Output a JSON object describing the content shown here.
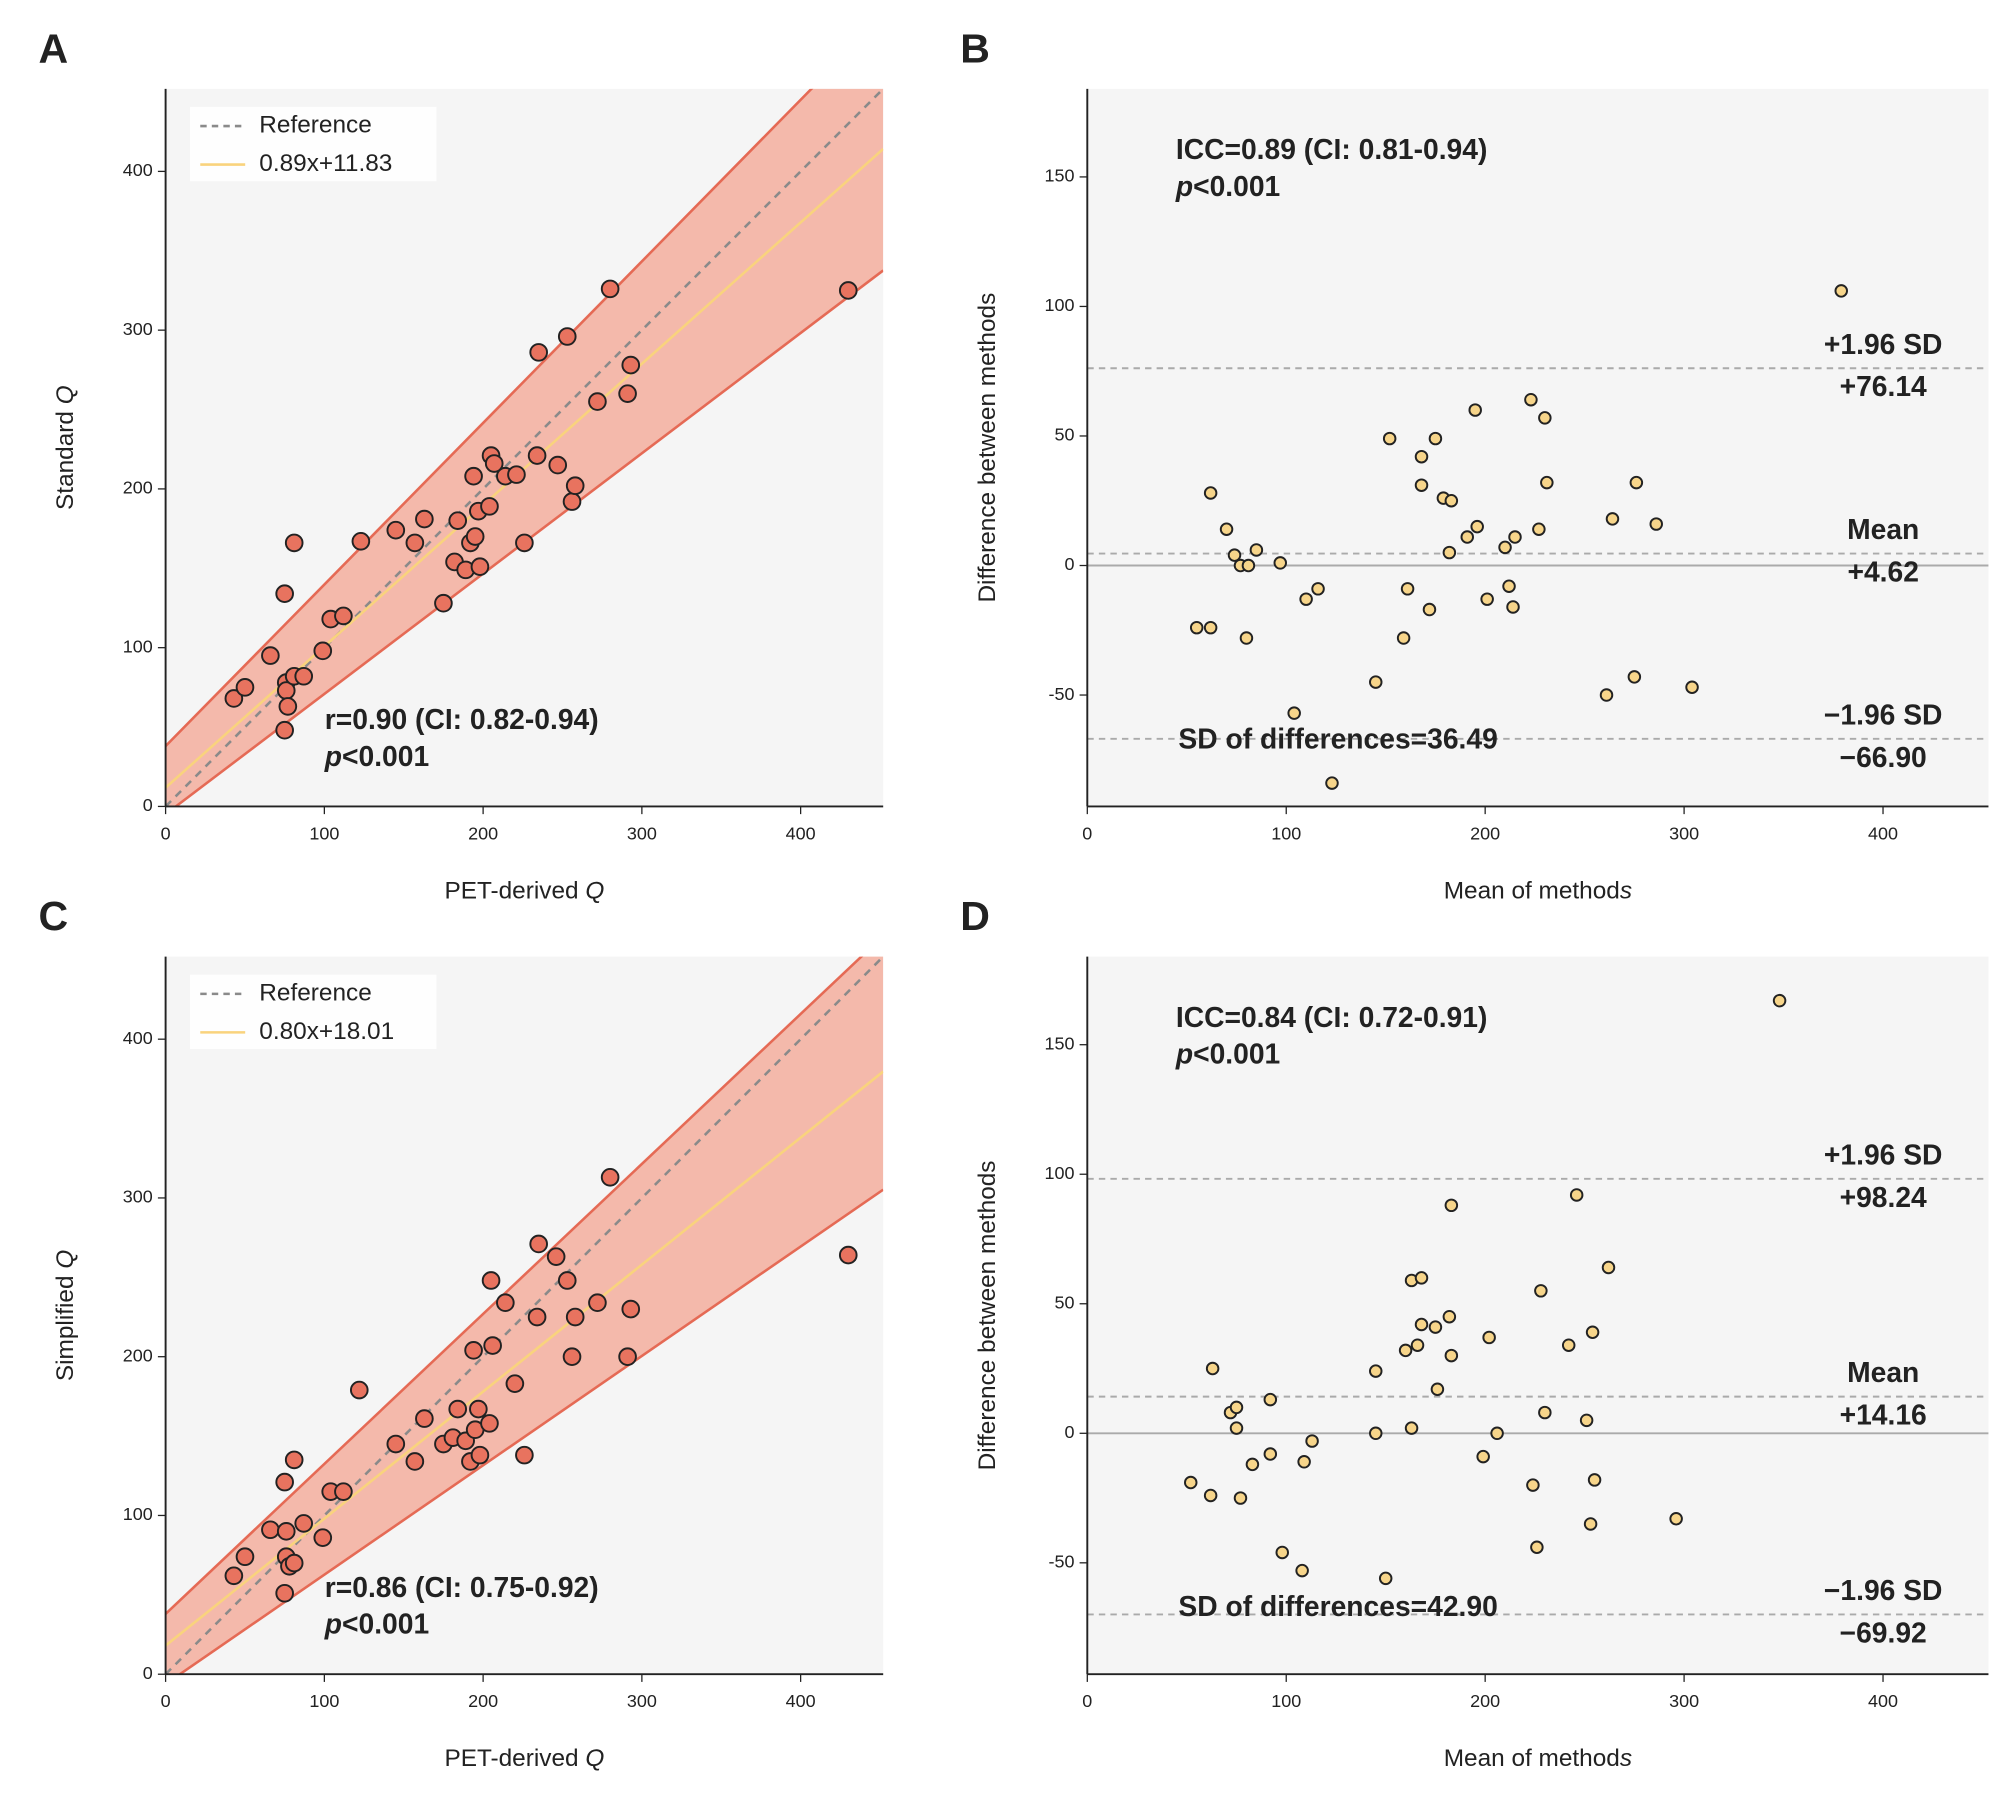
{
  "chart_data": [
    {
      "type": "scatter",
      "panel": "A",
      "xlabel": "PET-derived Q",
      "ylabel": "Standard Q",
      "xlim": [
        0,
        452
      ],
      "ylim": [
        0,
        452
      ],
      "xticks": [
        0,
        100,
        200,
        300,
        400
      ],
      "yticks": [
        0,
        100,
        200,
        300,
        400
      ],
      "legend": "upper left",
      "marker_color": "#e8735f",
      "x": [
        43,
        50,
        66,
        75,
        76,
        76,
        77,
        75,
        81,
        81,
        87,
        99,
        104,
        112,
        123,
        145,
        157,
        163,
        175,
        184,
        182,
        189,
        192,
        194,
        195,
        197,
        198,
        204,
        205,
        207,
        214,
        221,
        226,
        234,
        235,
        247,
        253,
        256,
        258,
        272,
        280,
        291,
        293,
        430
      ],
      "values": [
        68,
        75,
        95,
        134,
        78,
        73,
        63,
        48,
        82,
        166,
        82,
        98,
        118,
        120,
        167,
        174,
        166,
        181,
        128,
        180,
        154,
        149,
        166,
        208,
        170,
        186,
        151,
        189,
        221,
        216,
        208,
        209,
        166,
        221,
        286,
        215,
        296,
        192,
        202,
        255,
        326,
        260,
        278,
        325
      ],
      "band": {
        "x": [
          0,
          452
        ],
        "upper": [
          38,
          498
        ],
        "lower": [
          -4.9,
          337.6
        ],
        "color": "#f4b9ab",
        "edge": "#e56a55"
      },
      "lines": [
        {
          "name": "Reference",
          "color": "#8a8a8a",
          "dash": true,
          "x": [
            0,
            452
          ],
          "values": [
            0,
            452
          ]
        },
        {
          "name": "0.89x+11.83",
          "color": "#f9d37d",
          "dash": false,
          "x": [
            0,
            452
          ],
          "values": [
            11.83,
            414.11
          ]
        }
      ],
      "annotations": [
        "r=0.90 (CI: 0.82-0.94)",
        "p<0.001"
      ]
    },
    {
      "type": "scatter",
      "panel": "B",
      "xlabel": "Mean of methods",
      "ylabel": "Difference between methods",
      "xlim": [
        0,
        453
      ],
      "ylim": [
        -93,
        184
      ],
      "xticks": [
        0,
        100,
        200,
        300,
        400
      ],
      "yticks": [
        -50,
        0,
        50,
        100,
        150
      ],
      "marker_color": "#f7d58a",
      "x": [
        55,
        62,
        62,
        70,
        74,
        77,
        81,
        80,
        85,
        97,
        104,
        110,
        116,
        145,
        152,
        159,
        161,
        168,
        168,
        172,
        175,
        179,
        183,
        182,
        191,
        196,
        195,
        201,
        210,
        212,
        214,
        215,
        223,
        227,
        230,
        231,
        123,
        261,
        264,
        275,
        276,
        286,
        304,
        379
      ],
      "values": [
        -24,
        -24,
        28,
        14,
        4,
        0,
        0,
        -28,
        6,
        1,
        -57,
        -13,
        -9,
        -45,
        49,
        -28,
        -9,
        42,
        31,
        -17,
        49,
        26,
        25,
        5,
        11,
        15,
        60,
        -13,
        7,
        -8,
        -16,
        11,
        64,
        14,
        57,
        32,
        -84,
        -50,
        18,
        -43,
        32,
        16,
        -47,
        106
      ],
      "limits": [
        {
          "name": "+1.96 SD",
          "value": 76.14,
          "label": "+76.14"
        },
        {
          "name": "Mean",
          "value": 4.62,
          "label": "+4.62"
        },
        {
          "name": "−1.96 SD",
          "value": -66.9,
          "label": "−66.90"
        }
      ],
      "annotations": [
        "ICC=0.89 (CI: 0.81-0.94)",
        "p<0.001"
      ],
      "sd_label": "SD of differences=36.49"
    },
    {
      "type": "scatter",
      "panel": "C",
      "xlabel": "PET-derived Q",
      "ylabel": "Simplified Q",
      "xlim": [
        0,
        452
      ],
      "ylim": [
        0,
        452
      ],
      "xticks": [
        0,
        100,
        200,
        300,
        400
      ],
      "yticks": [
        0,
        100,
        200,
        300,
        400
      ],
      "legend": "upper left",
      "marker_color": "#e8735f",
      "x": [
        43,
        50,
        66,
        75,
        76,
        76,
        78,
        75,
        81,
        81,
        87,
        99,
        104,
        112,
        122,
        145,
        157,
        163,
        175,
        181,
        184,
        189,
        192,
        194,
        195,
        197,
        198,
        204,
        205,
        206,
        214,
        220,
        226,
        234,
        235,
        246,
        253,
        256,
        258,
        272,
        280,
        291,
        293,
        430
      ],
      "values": [
        62,
        74,
        91,
        121,
        90,
        74,
        68,
        51,
        70,
        135,
        95,
        86,
        115,
        115,
        179,
        145,
        134,
        161,
        145,
        149,
        167,
        147,
        134,
        204,
        154,
        167,
        138,
        158,
        248,
        207,
        234,
        183,
        138,
        225,
        271,
        263,
        248,
        200,
        225,
        234,
        313,
        200,
        230,
        264
      ],
      "band": {
        "x": [
          0,
          452
        ],
        "upper": [
          38,
          465
        ],
        "lower": [
          -6.2,
          305.2
        ],
        "color": "#f4b9ab",
        "edge": "#e56a55"
      },
      "lines": [
        {
          "name": "Reference",
          "color": "#8a8a8a",
          "dash": true,
          "x": [
            0,
            452
          ],
          "values": [
            0,
            452
          ]
        },
        {
          "name": "0.80x+18.01",
          "color": "#f9d37d",
          "dash": false,
          "x": [
            0,
            452
          ],
          "values": [
            18.01,
            379.61
          ]
        }
      ],
      "annotations": [
        "r=0.86 (CI: 0.75-0.92)",
        "p<0.001"
      ]
    },
    {
      "type": "scatter",
      "panel": "D",
      "xlabel": "Mean of methods",
      "ylabel": "Difference between methods",
      "xlim": [
        0,
        453
      ],
      "ylim": [
        -93,
        184
      ],
      "xticks": [
        0,
        100,
        200,
        300,
        400
      ],
      "yticks": [
        -50,
        0,
        50,
        100,
        150
      ],
      "marker_color": "#f7d58a",
      "x": [
        52,
        62,
        63,
        72,
        75,
        75,
        77,
        83,
        92,
        92,
        98,
        108,
        109,
        113,
        145,
        145,
        150,
        160,
        163,
        163,
        166,
        168,
        168,
        175,
        176,
        182,
        183,
        183,
        199,
        202,
        206,
        224,
        226,
        228,
        230,
        242,
        246,
        251,
        254,
        253,
        255,
        262,
        296,
        348
      ],
      "values": [
        -19,
        -24,
        25,
        8,
        10,
        2,
        -25,
        -12,
        13,
        -8,
        -46,
        -53,
        -11,
        -3,
        24,
        0,
        -56,
        32,
        59,
        2,
        34,
        60,
        42,
        41,
        17,
        45,
        30,
        88,
        -9,
        37,
        0,
        -20,
        -44,
        55,
        8,
        34,
        92,
        5,
        39,
        -35,
        -18,
        64,
        -33,
        167
      ],
      "limits": [
        {
          "name": "+1.96 SD",
          "value": 98.24,
          "label": "+98.24"
        },
        {
          "name": "Mean",
          "value": 14.16,
          "label": "+14.16"
        },
        {
          "name": "−1.96 SD",
          "value": -69.92,
          "label": "−69.92"
        }
      ],
      "annotations": [
        "ICC=0.84 (CI: 0.72-0.91)",
        "p<0.001"
      ],
      "sd_label": "SD of differences=42.90"
    }
  ]
}
